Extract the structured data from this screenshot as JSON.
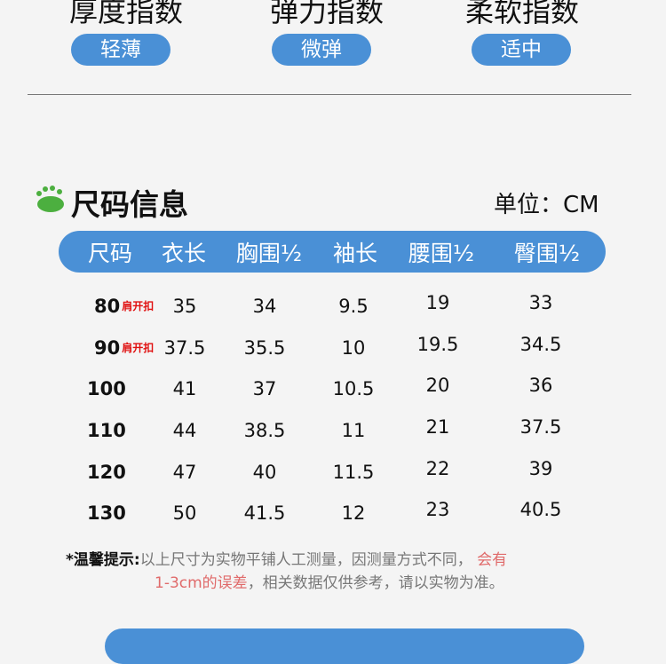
{
  "indices": [
    {
      "title": "厚度指数",
      "value": "轻薄"
    },
    {
      "title": "弹力指数",
      "value": "微弹"
    },
    {
      "title": "柔软指数",
      "value": "适中"
    }
  ],
  "section": {
    "title": "尺码信息",
    "unit": "单位：CM",
    "icon": "paw-icon"
  },
  "table": {
    "headers": [
      "尺码",
      "衣长",
      "胸围½",
      "袖长",
      "腰围½",
      "臀围½"
    ],
    "rows": [
      {
        "size": "80",
        "tag": "肩开扣",
        "cells": [
          "35",
          "34",
          "9.5",
          "19",
          "33"
        ]
      },
      {
        "size": "90",
        "tag": "肩开扣",
        "cells": [
          "37.5",
          "35.5",
          "10",
          "19.5",
          "34.5"
        ]
      },
      {
        "size": "100",
        "tag": "",
        "cells": [
          "41",
          "37",
          "10.5",
          "20",
          "36"
        ]
      },
      {
        "size": "110",
        "tag": "",
        "cells": [
          "44",
          "38.5",
          "11",
          "21",
          "37.5"
        ]
      },
      {
        "size": "120",
        "tag": "",
        "cells": [
          "47",
          "40",
          "11.5",
          "22",
          "39"
        ]
      },
      {
        "size": "130",
        "tag": "",
        "cells": [
          "50",
          "41.5",
          "12",
          "23",
          "40.5"
        ]
      }
    ]
  },
  "note": {
    "label": "*温馨提示:",
    "text1": "以上尺寸为实物平铺人工测量，因测量方式不同，",
    "red1": "会有",
    "red2": "1-3cm的误差",
    "text2": "，相关数据仅供参考，请以实物为准。"
  },
  "colors": {
    "accent": "#4a90d6",
    "tag": "#e01010",
    "warn": "#e06a6a",
    "paw": "#4caf3f"
  }
}
